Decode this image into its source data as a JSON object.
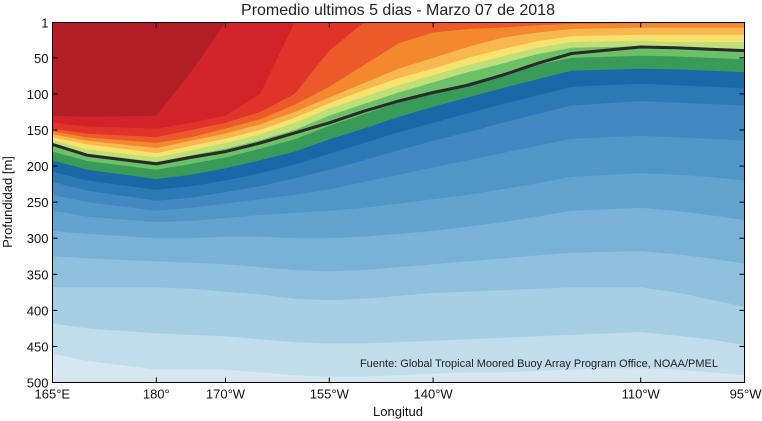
{
  "chart_data": {
    "type": "contour",
    "title": "Promedio ultimos 5 dias - Marzo 07 de 2018",
    "xlabel": "Longitud",
    "ylabel": "Profundidad [m]",
    "annotation": "Fuente: Global Tropical Moored Buoy Array Program Office, NOAA/PMEL",
    "x_ticks": [
      "165°E",
      "180°",
      "170°W",
      "155°W",
      "140°W",
      "110°W",
      "95°W"
    ],
    "x_tick_values_deg_east": [
      165,
      180,
      190,
      205,
      220,
      250,
      265
    ],
    "y_ticks": [
      "1",
      "50",
      "100",
      "150",
      "200",
      "250",
      "300",
      "350",
      "400",
      "450",
      "500"
    ],
    "y_tick_values": [
      1,
      50,
      100,
      150,
      200,
      250,
      300,
      350,
      400,
      450,
      500
    ],
    "ylim": [
      1,
      500
    ],
    "y_inverted": true,
    "xlim_deg_east": [
      165,
      265
    ],
    "grid": false,
    "longitudes_deg_east": [
      165,
      170,
      180,
      185,
      190,
      195,
      200,
      205,
      210,
      215,
      220,
      225,
      230,
      235,
      240,
      250,
      255,
      260,
      265
    ],
    "depth_contours": [
      {
        "level": "d1",
        "color": "#b11e26",
        "depths": [
          0,
          0,
          0,
          0,
          0,
          0,
          0,
          0,
          0,
          0,
          0,
          0,
          0,
          0,
          0,
          0,
          0,
          0,
          0
        ]
      },
      {
        "level": "d2",
        "color": "#d2232a",
        "depths": [
          130,
          132,
          130,
          70,
          0,
          0,
          0,
          0,
          0,
          0,
          0,
          0,
          0,
          0,
          0,
          0,
          0,
          0,
          0
        ]
      },
      {
        "level": "d3",
        "color": "#e13329",
        "depths": [
          140,
          145,
          148,
          140,
          130,
          100,
          0,
          0,
          0,
          0,
          0,
          0,
          0,
          0,
          0,
          0,
          0,
          0,
          0
        ]
      },
      {
        "level": "d4",
        "color": "#ec5a2c",
        "depths": [
          148,
          155,
          160,
          150,
          140,
          125,
          100,
          40,
          0,
          0,
          0,
          0,
          0,
          0,
          0,
          0,
          0,
          0,
          0
        ]
      },
      {
        "level": "d5",
        "color": "#f4882f",
        "depths": [
          152,
          160,
          168,
          160,
          148,
          135,
          115,
          90,
          60,
          30,
          15,
          10,
          8,
          5,
          3,
          2,
          2,
          2,
          2
        ]
      },
      {
        "level": "d6",
        "color": "#f9b751",
        "depths": [
          156,
          165,
          175,
          165,
          155,
          142,
          125,
          105,
          85,
          65,
          50,
          35,
          22,
          15,
          10,
          8,
          8,
          8,
          8
        ]
      },
      {
        "level": "d7",
        "color": "#f7e36c",
        "depths": [
          160,
          170,
          182,
          172,
          162,
          150,
          133,
          113,
          95,
          78,
          65,
          50,
          38,
          27,
          20,
          18,
          18,
          18,
          18
        ]
      },
      {
        "level": "d8",
        "color": "#bfdf78",
        "depths": [
          164,
          177,
          188,
          178,
          168,
          156,
          140,
          120,
          104,
          88,
          74,
          60,
          48,
          36,
          28,
          26,
          28,
          28,
          28
        ]
      },
      {
        "level": "d9",
        "color": "#6cc067",
        "depths": [
          168,
          183,
          194,
          185,
          176,
          164,
          150,
          130,
          114,
          98,
          84,
          70,
          58,
          45,
          36,
          34,
          36,
          38,
          38
        ]
      },
      {
        "level": "d10",
        "color": "#3a9a58",
        "depths": [
          180,
          193,
          205,
          197,
          188,
          176,
          163,
          144,
          128,
          112,
          98,
          85,
          72,
          60,
          50,
          47,
          48,
          50,
          52
        ]
      },
      {
        "level": "d11",
        "color": "#1a68a8",
        "depths": [
          192,
          205,
          218,
          212,
          203,
          192,
          180,
          163,
          148,
          132,
          118,
          105,
          92,
          80,
          68,
          65,
          66,
          68,
          70
        ]
      },
      {
        "level": "d12",
        "color": "#2c79b5",
        "depths": [
          208,
          220,
          233,
          228,
          220,
          210,
          198,
          183,
          168,
          153,
          140,
          127,
          114,
          102,
          90,
          86,
          88,
          90,
          92
        ]
      },
      {
        "level": "d13",
        "color": "#4189c0",
        "depths": [
          222,
          234,
          248,
          244,
          236,
          228,
          217,
          205,
          192,
          178,
          165,
          153,
          140,
          128,
          116,
          110,
          112,
          114,
          116
        ]
      },
      {
        "level": "d14",
        "color": "#5097c8",
        "depths": [
          240,
          250,
          262,
          258,
          252,
          246,
          240,
          232,
          222,
          212,
          202,
          192,
          182,
          172,
          162,
          158,
          160,
          162,
          165
        ]
      },
      {
        "level": "d15",
        "color": "#63a4cf",
        "depths": [
          262,
          270,
          278,
          276,
          272,
          268,
          265,
          262,
          258,
          252,
          246,
          240,
          232,
          224,
          215,
          210,
          212,
          215,
          220
        ]
      },
      {
        "level": "d16",
        "color": "#79b2d6",
        "depths": [
          290,
          294,
          300,
          300,
          298,
          298,
          300,
          300,
          298,
          294,
          290,
          284,
          278,
          270,
          262,
          258,
          262,
          268,
          275
        ]
      },
      {
        "level": "d17",
        "color": "#8fc0dd",
        "depths": [
          325,
          328,
          332,
          334,
          336,
          340,
          344,
          346,
          344,
          340,
          336,
          332,
          328,
          324,
          320,
          318,
          322,
          328,
          335
        ]
      },
      {
        "level": "d18",
        "color": "#a7cfe4",
        "depths": [
          368,
          368,
          368,
          370,
          374,
          378,
          384,
          386,
          384,
          380,
          376,
          374,
          372,
          370,
          368,
          368,
          375,
          385,
          395
        ]
      },
      {
        "level": "d19",
        "color": "#c1dcea",
        "depths": [
          418,
          425,
          432,
          434,
          436,
          440,
          444,
          446,
          446,
          444,
          442,
          440,
          438,
          436,
          434,
          430,
          435,
          440,
          448
        ]
      },
      {
        "level": "d20",
        "color": "#d7e7f1",
        "depths": [
          460,
          470,
          482,
          482,
          482,
          486,
          490,
          492,
          492,
          490,
          488,
          486,
          486,
          484,
          482,
          480,
          482,
          486,
          490
        ]
      }
    ],
    "highlight_line": {
      "color": "#2a2a2a",
      "depths": [
        170,
        185,
        197,
        188,
        180,
        168,
        154,
        140,
        124,
        110,
        98,
        88,
        74,
        58,
        44,
        35,
        36,
        38,
        40
      ]
    }
  }
}
